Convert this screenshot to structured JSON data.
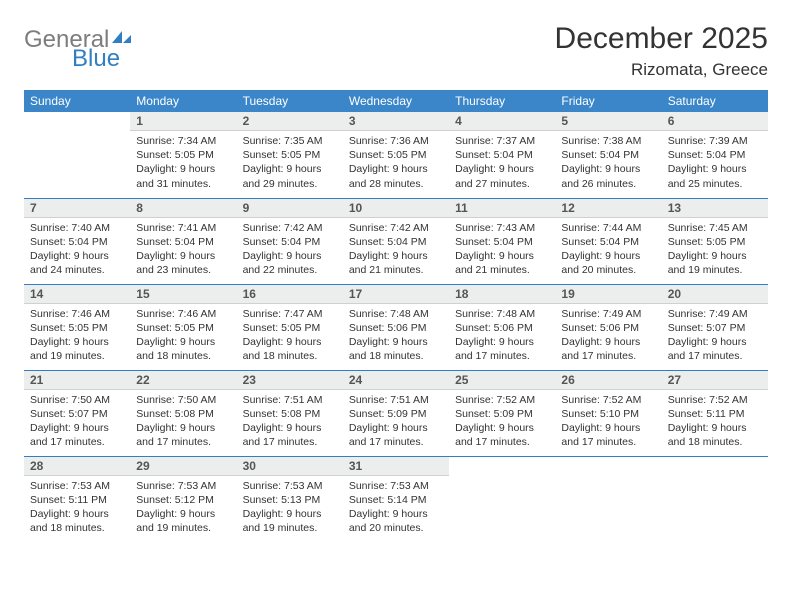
{
  "logo": {
    "part1": "General",
    "part2": "Blue"
  },
  "title": "December 2025",
  "location": "Rizomata, Greece",
  "colors": {
    "header_bg": "#3a86c8",
    "header_text": "#ffffff",
    "daynum_bg": "#eceeee",
    "week_rule": "#2f7fc2",
    "logo_gray": "#7d7d7d",
    "logo_blue": "#2f7fc2"
  },
  "weekdays": [
    "Sunday",
    "Monday",
    "Tuesday",
    "Wednesday",
    "Thursday",
    "Friday",
    "Saturday"
  ],
  "weeks": [
    [
      {
        "n": "",
        "sr": "",
        "ss": "",
        "dl": ""
      },
      {
        "n": "1",
        "sr": "7:34 AM",
        "ss": "5:05 PM",
        "dl": "9 hours and 31 minutes."
      },
      {
        "n": "2",
        "sr": "7:35 AM",
        "ss": "5:05 PM",
        "dl": "9 hours and 29 minutes."
      },
      {
        "n": "3",
        "sr": "7:36 AM",
        "ss": "5:05 PM",
        "dl": "9 hours and 28 minutes."
      },
      {
        "n": "4",
        "sr": "7:37 AM",
        "ss": "5:04 PM",
        "dl": "9 hours and 27 minutes."
      },
      {
        "n": "5",
        "sr": "7:38 AM",
        "ss": "5:04 PM",
        "dl": "9 hours and 26 minutes."
      },
      {
        "n": "6",
        "sr": "7:39 AM",
        "ss": "5:04 PM",
        "dl": "9 hours and 25 minutes."
      }
    ],
    [
      {
        "n": "7",
        "sr": "7:40 AM",
        "ss": "5:04 PM",
        "dl": "9 hours and 24 minutes."
      },
      {
        "n": "8",
        "sr": "7:41 AM",
        "ss": "5:04 PM",
        "dl": "9 hours and 23 minutes."
      },
      {
        "n": "9",
        "sr": "7:42 AM",
        "ss": "5:04 PM",
        "dl": "9 hours and 22 minutes."
      },
      {
        "n": "10",
        "sr": "7:42 AM",
        "ss": "5:04 PM",
        "dl": "9 hours and 21 minutes."
      },
      {
        "n": "11",
        "sr": "7:43 AM",
        "ss": "5:04 PM",
        "dl": "9 hours and 21 minutes."
      },
      {
        "n": "12",
        "sr": "7:44 AM",
        "ss": "5:04 PM",
        "dl": "9 hours and 20 minutes."
      },
      {
        "n": "13",
        "sr": "7:45 AM",
        "ss": "5:05 PM",
        "dl": "9 hours and 19 minutes."
      }
    ],
    [
      {
        "n": "14",
        "sr": "7:46 AM",
        "ss": "5:05 PM",
        "dl": "9 hours and 19 minutes."
      },
      {
        "n": "15",
        "sr": "7:46 AM",
        "ss": "5:05 PM",
        "dl": "9 hours and 18 minutes."
      },
      {
        "n": "16",
        "sr": "7:47 AM",
        "ss": "5:05 PM",
        "dl": "9 hours and 18 minutes."
      },
      {
        "n": "17",
        "sr": "7:48 AM",
        "ss": "5:06 PM",
        "dl": "9 hours and 18 minutes."
      },
      {
        "n": "18",
        "sr": "7:48 AM",
        "ss": "5:06 PM",
        "dl": "9 hours and 17 minutes."
      },
      {
        "n": "19",
        "sr": "7:49 AM",
        "ss": "5:06 PM",
        "dl": "9 hours and 17 minutes."
      },
      {
        "n": "20",
        "sr": "7:49 AM",
        "ss": "5:07 PM",
        "dl": "9 hours and 17 minutes."
      }
    ],
    [
      {
        "n": "21",
        "sr": "7:50 AM",
        "ss": "5:07 PM",
        "dl": "9 hours and 17 minutes."
      },
      {
        "n": "22",
        "sr": "7:50 AM",
        "ss": "5:08 PM",
        "dl": "9 hours and 17 minutes."
      },
      {
        "n": "23",
        "sr": "7:51 AM",
        "ss": "5:08 PM",
        "dl": "9 hours and 17 minutes."
      },
      {
        "n": "24",
        "sr": "7:51 AM",
        "ss": "5:09 PM",
        "dl": "9 hours and 17 minutes."
      },
      {
        "n": "25",
        "sr": "7:52 AM",
        "ss": "5:09 PM",
        "dl": "9 hours and 17 minutes."
      },
      {
        "n": "26",
        "sr": "7:52 AM",
        "ss": "5:10 PM",
        "dl": "9 hours and 17 minutes."
      },
      {
        "n": "27",
        "sr": "7:52 AM",
        "ss": "5:11 PM",
        "dl": "9 hours and 18 minutes."
      }
    ],
    [
      {
        "n": "28",
        "sr": "7:53 AM",
        "ss": "5:11 PM",
        "dl": "9 hours and 18 minutes."
      },
      {
        "n": "29",
        "sr": "7:53 AM",
        "ss": "5:12 PM",
        "dl": "9 hours and 19 minutes."
      },
      {
        "n": "30",
        "sr": "7:53 AM",
        "ss": "5:13 PM",
        "dl": "9 hours and 19 minutes."
      },
      {
        "n": "31",
        "sr": "7:53 AM",
        "ss": "5:14 PM",
        "dl": "9 hours and 20 minutes."
      },
      {
        "n": "",
        "sr": "",
        "ss": "",
        "dl": ""
      },
      {
        "n": "",
        "sr": "",
        "ss": "",
        "dl": ""
      },
      {
        "n": "",
        "sr": "",
        "ss": "",
        "dl": ""
      }
    ]
  ],
  "labels": {
    "sunrise": "Sunrise: ",
    "sunset": "Sunset: ",
    "daylight": "Daylight: "
  }
}
